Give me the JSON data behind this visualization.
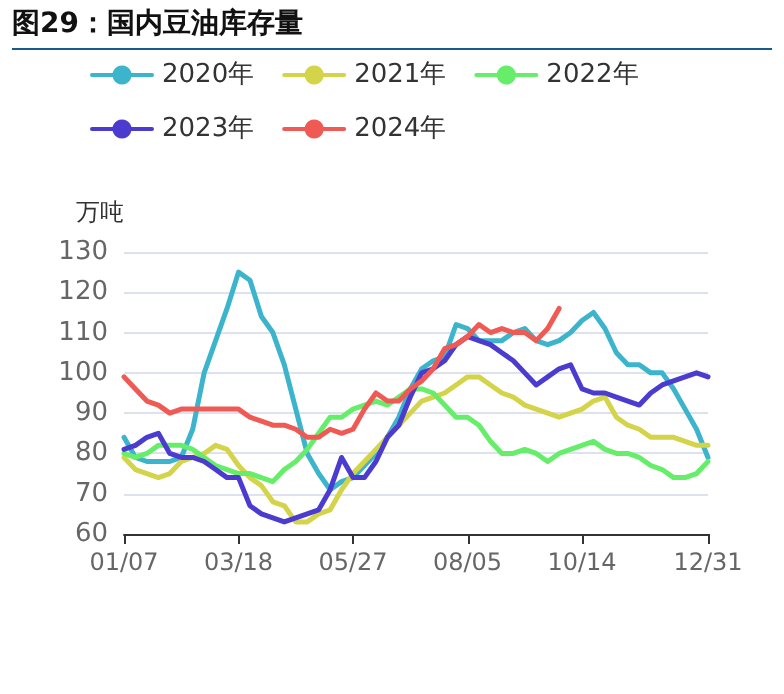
{
  "chart_data": {
    "type": "line",
    "title": "图29：国内豆油库存量",
    "ylabel": "万吨",
    "categories": [
      "01/07",
      null,
      null,
      null,
      null,
      null,
      null,
      null,
      null,
      null,
      "03/18",
      null,
      null,
      null,
      null,
      null,
      null,
      null,
      null,
      null,
      "05/27",
      null,
      null,
      null,
      null,
      null,
      null,
      null,
      null,
      null,
      "08/05",
      null,
      null,
      null,
      null,
      null,
      null,
      null,
      null,
      null,
      "10/14",
      null,
      null,
      null,
      null,
      null,
      null,
      null,
      null,
      null,
      null,
      "12/31"
    ],
    "series": [
      {
        "name": "2020年",
        "color": "#3bb4cc",
        "values": [
          84,
          79,
          78,
          78,
          78,
          79,
          86,
          100,
          108,
          116,
          125,
          123,
          114,
          110,
          102,
          91,
          80,
          75,
          71,
          73,
          74,
          77,
          80,
          84,
          89,
          96,
          101,
          103,
          104,
          112,
          111,
          108,
          108,
          108,
          110,
          111,
          108,
          107,
          108,
          110,
          113,
          115,
          111,
          105,
          102,
          102,
          100,
          100,
          96,
          91,
          86,
          79
        ]
      },
      {
        "name": "2021年",
        "color": "#d4d44a",
        "values": [
          79,
          76,
          75,
          74,
          75,
          78,
          79,
          80,
          82,
          81,
          77,
          74,
          72,
          68,
          67,
          63,
          63,
          65,
          66,
          71,
          75,
          78,
          81,
          84,
          87,
          90,
          93,
          94,
          95,
          97,
          99,
          99,
          97,
          95,
          94,
          92,
          91,
          90,
          89,
          90,
          91,
          93,
          94,
          89,
          87,
          86,
          84,
          84,
          84,
          83,
          82,
          82
        ]
      },
      {
        "name": "2022年",
        "color": "#66ee6a",
        "values": [
          80,
          79,
          80,
          82,
          82,
          82,
          81,
          79,
          77,
          76,
          75,
          75,
          74,
          73,
          76,
          78,
          81,
          85,
          89,
          89,
          91,
          92,
          93,
          92,
          94,
          96,
          96,
          95,
          92,
          89,
          89,
          87,
          83,
          80,
          80,
          81,
          80,
          78,
          80,
          81,
          82,
          83,
          81,
          80,
          80,
          79,
          77,
          76,
          74,
          74,
          75,
          78
        ]
      },
      {
        "name": "2023年",
        "color": "#4b3bcf",
        "values": [
          81,
          82,
          84,
          85,
          80,
          79,
          79,
          78,
          76,
          74,
          74,
          67,
          65,
          64,
          63,
          64,
          65,
          66,
          71,
          79,
          74,
          74,
          78,
          84,
          87,
          94,
          100,
          101,
          103,
          107,
          109,
          108,
          107,
          105,
          103,
          100,
          97,
          99,
          101,
          102,
          96,
          95,
          95,
          94,
          93,
          92,
          95,
          97,
          98,
          99,
          100,
          99
        ]
      },
      {
        "name": "2024年",
        "color": "#f05a55",
        "values": [
          99,
          96,
          93,
          92,
          90,
          91,
          91,
          91,
          91,
          91,
          91,
          89,
          88,
          87,
          87,
          86,
          84,
          84,
          86,
          85,
          86,
          91,
          95,
          93,
          93,
          96,
          98,
          101,
          106,
          107,
          109,
          112,
          110,
          111,
          110,
          110,
          108,
          111,
          116,
          null,
          null,
          null,
          null,
          null,
          null,
          null,
          null,
          null,
          null,
          null,
          null,
          null
        ]
      }
    ],
    "ylim": [
      60,
      130
    ],
    "yticks": [
      60,
      70,
      80,
      90,
      100,
      110,
      120,
      130
    ],
    "grid": "y",
    "legend": "top left",
    "marker": "none",
    "line_style": "solid"
  }
}
